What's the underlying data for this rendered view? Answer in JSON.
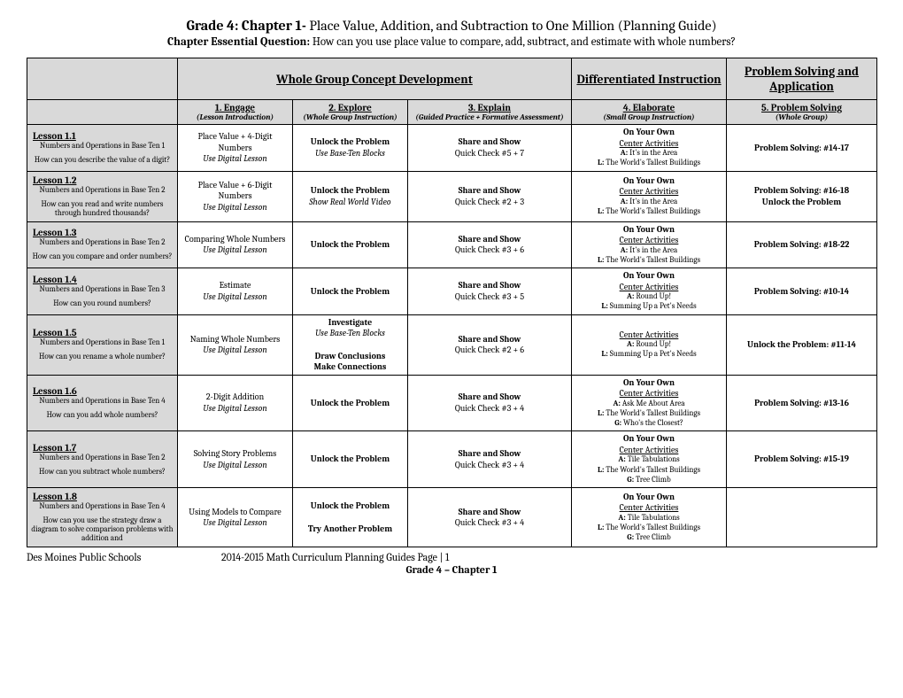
{
  "title_prefix": "Grade 4: Chapter 1- ",
  "title_rest": "Place Value, Addition, and Subtraction to One Million (Planning Guide)",
  "eq_label": "Chapter Essential Question: ",
  "eq_text": "How can you use place value to compare, add, subtract, and estimate with whole numbers?",
  "group_headers": {
    "g1": "Whole Group Concept Development",
    "g2": "Differentiated Instruction",
    "g3": "Problem Solving and Application"
  },
  "col_headers": [
    {
      "title": "1. Engage",
      "note": "(Lesson Introduction)"
    },
    {
      "title": "2. Explore",
      "note": "(Whole Group Instruction)"
    },
    {
      "title": "3. Explain",
      "note": "(Guided Practice + Formative Assessment)"
    },
    {
      "title": "4. Elaborate",
      "note": "(Small Group Instruction)"
    },
    {
      "title": "5. Problem Solving",
      "note": "(Whole Group)"
    }
  ],
  "rows": [
    {
      "lesson": "Lesson 1.1",
      "standard": "Numbers and Operations in Base Ten 1",
      "question": "How can you describe the value of a digit?",
      "engage": [
        "Place Value + 4-Digit Numbers",
        "*Use Digital Lesson"
      ],
      "explore": [
        "**Unlock the Problem",
        "*Use Base-Ten Blocks"
      ],
      "explain": [
        "**Share and Show",
        "Quick Check #5 + 7"
      ],
      "elaborate": [
        "**On Your Own",
        "_Center Activities",
        "**A:$ It's in the Area",
        "**L:$ The World's Tallest Buildings"
      ],
      "solve": [
        "**Problem Solving: #14-17"
      ]
    },
    {
      "lesson": "Lesson 1.2",
      "standard": "Numbers and Operations in Base Ten 2",
      "question": "How can you read and write numbers through hundred thousands?",
      "engage": [
        "Place Value + 6-Digit Numbers",
        "*Use Digital Lesson"
      ],
      "explore": [
        "**Unlock the Problem",
        "*Show Real World Video"
      ],
      "explain": [
        "**Share and Show",
        "Quick Check #2 + 3"
      ],
      "elaborate": [
        "**On Your Own",
        "_Center Activities",
        "**A:$ It's in the Area",
        "**L:$ The World's Tallest Buildings"
      ],
      "solve": [
        "**Problem Solving: #16-18",
        "**Unlock the Problem"
      ]
    },
    {
      "lesson": "Lesson 1.3",
      "standard": "Numbers and Operations in Base Ten 2",
      "question": "How can you compare and order numbers?",
      "engage": [
        "Comparing Whole Numbers",
        "*Use Digital Lesson"
      ],
      "explore": [
        "**Unlock the Problem"
      ],
      "explain": [
        "**Share and Show",
        "Quick Check #3 + 6"
      ],
      "elaborate": [
        "**On Your Own",
        "_Center Activities",
        "**A:$ It's in the Area",
        "**L:$ The World's Tallest Buildings"
      ],
      "solve": [
        "**Problem Solving: #18-22"
      ]
    },
    {
      "lesson": "Lesson 1.4",
      "standard": "Numbers and Operations in Base Ten 3",
      "question": "How can you round numbers?",
      "engage": [
        "Estimate",
        "*Use Digital Lesson"
      ],
      "explore": [
        "**Unlock the Problem"
      ],
      "explain": [
        "**Share and Show",
        "Quick Check #3 + 5"
      ],
      "elaborate": [
        "**On Your Own",
        "_Center Activities",
        "**A:$ Round Up!",
        "**L:$ Summing Up a Pet's Needs"
      ],
      "solve": [
        "**Problem Solving: #10-14"
      ]
    },
    {
      "lesson": "Lesson 1.5",
      "standard": "Numbers and Operations in Base Ten 1",
      "question": "How can you rename a whole number?",
      "engage": [
        "Naming Whole Numbers",
        "*Use Digital Lesson"
      ],
      "explore": [
        "**Investigate",
        "*Use Base-Ten Blocks",
        " ",
        "**Draw Conclusions",
        "**Make Connections"
      ],
      "explain": [
        "**Share and Show",
        "Quick Check #2 + 6"
      ],
      "elaborate": [
        "_Center Activities",
        "**A:$ Round Up!",
        "**L:$ Summing Up a Pet's Needs"
      ],
      "solve": [
        "**Unlock the Problem: #11-14"
      ]
    },
    {
      "lesson": "Lesson 1.6",
      "standard": "Numbers and Operations in Base Ten 4",
      "question": "How can you add whole numbers?",
      "engage": [
        "2-Digit Addition",
        "*Use Digital Lesson"
      ],
      "explore": [
        "**Unlock the Problem"
      ],
      "explain": [
        "**Share and Show",
        "Quick Check #3 + 4"
      ],
      "elaborate": [
        "**On Your Own",
        "_Center Activities",
        "**A:$ Ask Me About Area",
        "**L:$ The World's Tallest Buildings",
        "**G:$ Who's the Closest?"
      ],
      "solve": [
        "**Problem Solving: #13-16"
      ]
    },
    {
      "lesson": "Lesson 1.7",
      "standard": "Numbers and Operations in Base Ten 2",
      "question": "How can you subtract whole numbers?",
      "engage": [
        "Solving Story Problems",
        "*Use Digital Lesson"
      ],
      "explore": [
        "**Unlock the Problem"
      ],
      "explain": [
        "**Share and Show",
        "Quick Check #3 + 4"
      ],
      "elaborate": [
        "**On Your Own",
        "_Center Activities",
        "**A:$ Tile Tabulations",
        "**L:$ The World's Tallest Buildings",
        "**G:$ Tree Climb"
      ],
      "solve": [
        "**Problem Solving: #15-19"
      ]
    },
    {
      "lesson": "Lesson 1.8",
      "standard": "Numbers and Operations in Base Ten 4",
      "question": "How can you use the strategy draw a diagram to solve comparison problems with addition and",
      "engage": [
        "Using Models to Compare",
        "*Use Digital Lesson"
      ],
      "explore": [
        "**Unlock the Problem",
        " ",
        "**Try Another Problem"
      ],
      "explain": [
        "**Share and Show",
        "Quick Check #3 + 4"
      ],
      "elaborate": [
        "**On Your Own",
        "_Center Activities",
        "**A:$ Tile Tabulations",
        "**L:$ The World's Tallest Buildings",
        "**G:$ Tree Climb"
      ],
      "solve": []
    }
  ],
  "footer": {
    "left": "Des Moines Public Schools",
    "mid": "2014-2015 Math Curriculum Planning Guides Page | 1",
    "bottom": "Grade 4 – Chapter 1"
  }
}
